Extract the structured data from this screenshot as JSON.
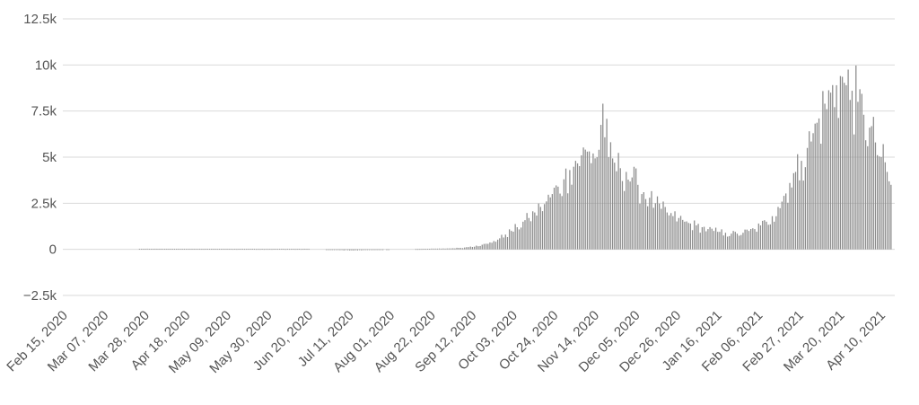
{
  "chart_data": {
    "type": "bar",
    "title": "",
    "xlabel": "",
    "ylabel": "",
    "grid": true,
    "legend": "none",
    "bar_color": "#8c8c8c",
    "grid_color": "#d9d9d9",
    "ylim": [
      -2500,
      12500
    ],
    "y_ticks": [
      {
        "value": 12500,
        "label": "12.5k"
      },
      {
        "value": 10000,
        "label": "10k"
      },
      {
        "value": 7500,
        "label": "7.5k"
      },
      {
        "value": 5000,
        "label": "5k"
      },
      {
        "value": 2500,
        "label": "2.5k"
      },
      {
        "value": 0,
        "label": "0"
      },
      {
        "value": -2500,
        "label": "−2.5k"
      }
    ],
    "x_start_date": "2020-02-15",
    "x_end_date": "2021-04-15",
    "x_ticks": [
      {
        "date": "2020-02-15",
        "label": "Feb 15, 2020"
      },
      {
        "date": "2020-03-07",
        "label": "Mar 07, 2020"
      },
      {
        "date": "2020-03-28",
        "label": "Mar 28, 2020"
      },
      {
        "date": "2020-04-18",
        "label": "Apr 18, 2020"
      },
      {
        "date": "2020-05-09",
        "label": "May 09, 2020"
      },
      {
        "date": "2020-05-30",
        "label": "May 30, 2020"
      },
      {
        "date": "2020-06-20",
        "label": "Jun 20, 2020"
      },
      {
        "date": "2020-07-11",
        "label": "Jul 11, 2020"
      },
      {
        "date": "2020-08-01",
        "label": "Aug 01, 2020"
      },
      {
        "date": "2020-08-22",
        "label": "Aug 22, 2020"
      },
      {
        "date": "2020-09-12",
        "label": "Sep 12, 2020"
      },
      {
        "date": "2020-10-03",
        "label": "Oct 03, 2020"
      },
      {
        "date": "2020-10-24",
        "label": "Oct 24, 2020"
      },
      {
        "date": "2020-11-14",
        "label": "Nov 14, 2020"
      },
      {
        "date": "2020-12-05",
        "label": "Dec 05, 2020"
      },
      {
        "date": "2020-12-26",
        "label": "Dec 26, 2020"
      },
      {
        "date": "2021-01-16",
        "label": "Jan 16, 2021"
      },
      {
        "date": "2021-02-06",
        "label": "Feb 06, 2021"
      },
      {
        "date": "2021-02-27",
        "label": "Feb 27, 2021"
      },
      {
        "date": "2021-03-20",
        "label": "Mar 20, 2021"
      },
      {
        "date": "2021-04-10",
        "label": "Apr 10, 2021"
      }
    ],
    "series_points": [
      {
        "date": "2020-03-24",
        "value": 30
      },
      {
        "date": "2020-06-19",
        "value": 20
      },
      {
        "date": "2020-07-10",
        "value": -60
      },
      {
        "date": "2020-08-20",
        "value": 30
      },
      {
        "date": "2020-08-23",
        "value": 40
      },
      {
        "date": "2020-08-26",
        "value": 40
      },
      {
        "date": "2020-08-29",
        "value": 50
      },
      {
        "date": "2020-09-01",
        "value": 60
      },
      {
        "date": "2020-09-04",
        "value": 80
      },
      {
        "date": "2020-09-07",
        "value": 100
      },
      {
        "date": "2020-09-10",
        "value": 150
      },
      {
        "date": "2020-09-13",
        "value": 200
      },
      {
        "date": "2020-09-16",
        "value": 250
      },
      {
        "date": "2020-09-19",
        "value": 300
      },
      {
        "date": "2020-09-22",
        "value": 450
      },
      {
        "date": "2020-09-25",
        "value": 600
      },
      {
        "date": "2020-09-28",
        "value": 800
      },
      {
        "date": "2020-10-01",
        "value": 1000
      },
      {
        "date": "2020-10-04",
        "value": 1200
      },
      {
        "date": "2020-10-07",
        "value": 1500
      },
      {
        "date": "2020-10-10",
        "value": 1700
      },
      {
        "date": "2020-10-13",
        "value": 2000
      },
      {
        "date": "2020-10-16",
        "value": 2300
      },
      {
        "date": "2020-10-19",
        "value": 2600
      },
      {
        "date": "2020-10-22",
        "value": 3000
      },
      {
        "date": "2020-10-25",
        "value": 3400
      },
      {
        "date": "2020-10-28",
        "value": 3800
      },
      {
        "date": "2020-10-31",
        "value": 4300
      },
      {
        "date": "2020-11-03",
        "value": 4800
      },
      {
        "date": "2020-11-06",
        "value": 5100
      },
      {
        "date": "2020-11-09",
        "value": 5300
      },
      {
        "date": "2020-11-12",
        "value": 5200
      },
      {
        "date": "2020-11-15",
        "value": 5400
      },
      {
        "date": "2020-11-17",
        "value": 7900
      },
      {
        "date": "2020-11-20",
        "value": 5000
      },
      {
        "date": "2020-11-23",
        "value": 4700
      },
      {
        "date": "2020-11-26",
        "value": 4400
      },
      {
        "date": "2020-11-29",
        "value": 4200
      },
      {
        "date": "2020-12-02",
        "value": 3900
      },
      {
        "date": "2020-12-05",
        "value": 3500
      },
      {
        "date": "2020-12-08",
        "value": 3100
      },
      {
        "date": "2020-12-11",
        "value": 2800
      },
      {
        "date": "2020-12-14",
        "value": 2500
      },
      {
        "date": "2020-12-17",
        "value": 2200
      },
      {
        "date": "2020-12-20",
        "value": 2000
      },
      {
        "date": "2020-12-23",
        "value": 1800
      },
      {
        "date": "2020-12-26",
        "value": 1700
      },
      {
        "date": "2020-12-29",
        "value": 1500
      },
      {
        "date": "2021-01-01",
        "value": 1400
      },
      {
        "date": "2021-01-04",
        "value": 1300
      },
      {
        "date": "2021-01-07",
        "value": 1200
      },
      {
        "date": "2021-01-10",
        "value": 1100
      },
      {
        "date": "2021-01-13",
        "value": 1000
      },
      {
        "date": "2021-01-16",
        "value": 950
      },
      {
        "date": "2021-01-19",
        "value": 900
      },
      {
        "date": "2021-01-22",
        "value": 850
      },
      {
        "date": "2021-01-25",
        "value": 850
      },
      {
        "date": "2021-01-28",
        "value": 900
      },
      {
        "date": "2021-01-31",
        "value": 1000
      },
      {
        "date": "2021-02-03",
        "value": 1100
      },
      {
        "date": "2021-02-06",
        "value": 1300
      },
      {
        "date": "2021-02-09",
        "value": 1500
      },
      {
        "date": "2021-02-12",
        "value": 1800
      },
      {
        "date": "2021-02-15",
        "value": 2300
      },
      {
        "date": "2021-02-18",
        "value": 2900
      },
      {
        "date": "2021-02-21",
        "value": 3600
      },
      {
        "date": "2021-02-24",
        "value": 4200
      },
      {
        "date": "2021-02-27",
        "value": 4800
      },
      {
        "date": "2021-03-02",
        "value": 5500
      },
      {
        "date": "2021-03-05",
        "value": 6300
      },
      {
        "date": "2021-03-08",
        "value": 7100
      },
      {
        "date": "2021-03-11",
        "value": 7900
      },
      {
        "date": "2021-03-14",
        "value": 8500
      },
      {
        "date": "2021-03-17",
        "value": 8900
      },
      {
        "date": "2021-03-19",
        "value": 9400
      },
      {
        "date": "2021-03-22",
        "value": 8900
      },
      {
        "date": "2021-03-25",
        "value": 8600
      },
      {
        "date": "2021-03-28",
        "value": 8000
      },
      {
        "date": "2021-03-31",
        "value": 7300
      },
      {
        "date": "2021-04-03",
        "value": 6600
      },
      {
        "date": "2021-04-06",
        "value": 5800
      },
      {
        "date": "2021-04-09",
        "value": 5000
      },
      {
        "date": "2021-04-12",
        "value": 4200
      },
      {
        "date": "2021-04-14",
        "value": 3500
      }
    ]
  }
}
